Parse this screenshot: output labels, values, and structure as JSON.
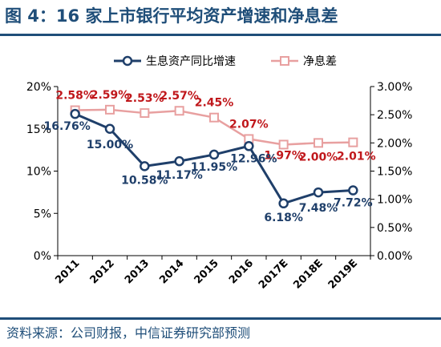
{
  "header": {
    "title": "图 4：16 家上市银行平均资产增速和净息差",
    "source": "资料来源：公司财报，中信证券研究部预测"
  },
  "colors": {
    "title": "#1f4e79",
    "asset_growth": "#1f3f6a",
    "nim": "#e8a0a0",
    "nim_label": "#c0181c"
  },
  "chart_data": {
    "type": "line",
    "categories": [
      "2011",
      "2012",
      "2013",
      "2014",
      "2015",
      "2016",
      "2017E",
      "2018E",
      "2019E"
    ],
    "y_left": {
      "ylim": [
        0,
        20
      ],
      "ticks": [
        "0%",
        "5%",
        "10%",
        "15%",
        "20%"
      ]
    },
    "y_right": {
      "ylim": [
        0,
        3
      ],
      "ticks": [
        "0.00%",
        "0.50%",
        "1.00%",
        "1.50%",
        "2.00%",
        "2.50%",
        "3.00%"
      ]
    },
    "series": [
      {
        "name": "生息资产同比增速",
        "axis": "left",
        "values": [
          16.76,
          15.0,
          10.58,
          11.17,
          11.95,
          12.96,
          6.18,
          7.48,
          7.72
        ],
        "labels": [
          "16.76%",
          "15.00%",
          "10.58%",
          "11.17%",
          "11.95%",
          "12.96%",
          "6.18%",
          "7.48%",
          "7.72%"
        ]
      },
      {
        "name": "净息差",
        "axis": "right",
        "values": [
          2.58,
          2.59,
          2.53,
          2.57,
          2.45,
          2.07,
          1.97,
          2.0,
          2.01
        ],
        "labels": [
          "2.58%",
          "2.59%",
          "2.53%",
          "2.57%",
          "2.45%",
          "2.07%",
          "1.97%",
          "2.00%",
          "2.01%"
        ]
      }
    ],
    "legend": "top"
  }
}
